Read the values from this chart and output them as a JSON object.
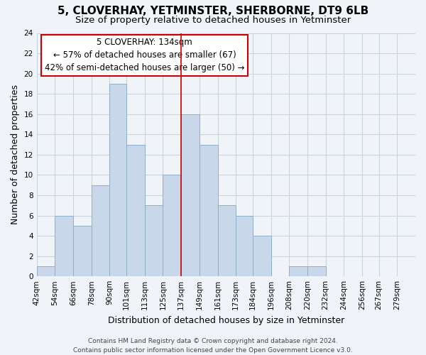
{
  "title": "5, CLOVERHAY, YETMINSTER, SHERBORNE, DT9 6LB",
  "subtitle": "Size of property relative to detached houses in Yetminster",
  "xlabel": "Distribution of detached houses by size in Yetminster",
  "ylabel": "Number of detached properties",
  "bin_labels": [
    "42sqm",
    "54sqm",
    "66sqm",
    "78sqm",
    "90sqm",
    "101sqm",
    "113sqm",
    "125sqm",
    "137sqm",
    "149sqm",
    "161sqm",
    "173sqm",
    "184sqm",
    "196sqm",
    "208sqm",
    "220sqm",
    "232sqm",
    "244sqm",
    "256sqm",
    "267sqm",
    "279sqm"
  ],
  "bin_edges": [
    42,
    54,
    66,
    78,
    90,
    101,
    113,
    125,
    137,
    149,
    161,
    173,
    184,
    196,
    208,
    220,
    232,
    244,
    256,
    267,
    279
  ],
  "counts": [
    1,
    6,
    5,
    9,
    19,
    13,
    7,
    10,
    16,
    13,
    7,
    6,
    4,
    0,
    1,
    1,
    0,
    0,
    0,
    0,
    0
  ],
  "bar_color": "#c8d8ea",
  "bar_edge_color": "#90aec8",
  "property_line_x": 137,
  "property_line_color": "#cc0000",
  "annotation_title": "5 CLOVERHAY: 134sqm",
  "annotation_line1": "← 57% of detached houses are smaller (67)",
  "annotation_line2": "42% of semi-detached houses are larger (50) →",
  "annotation_box_color": "#ffffff",
  "annotation_box_edge": "#cc0000",
  "ylim": [
    0,
    24
  ],
  "yticks": [
    0,
    2,
    4,
    6,
    8,
    10,
    12,
    14,
    16,
    18,
    20,
    22,
    24
  ],
  "footer1": "Contains HM Land Registry data © Crown copyright and database right 2024.",
  "footer2": "Contains public sector information licensed under the Open Government Licence v3.0.",
  "background_color": "#f0f4f8",
  "grid_color": "#c8d4e0",
  "title_fontsize": 11,
  "subtitle_fontsize": 9.5,
  "axis_label_fontsize": 9,
  "tick_fontsize": 7.5,
  "footer_fontsize": 6.5,
  "annotation_fontsize": 8.5
}
